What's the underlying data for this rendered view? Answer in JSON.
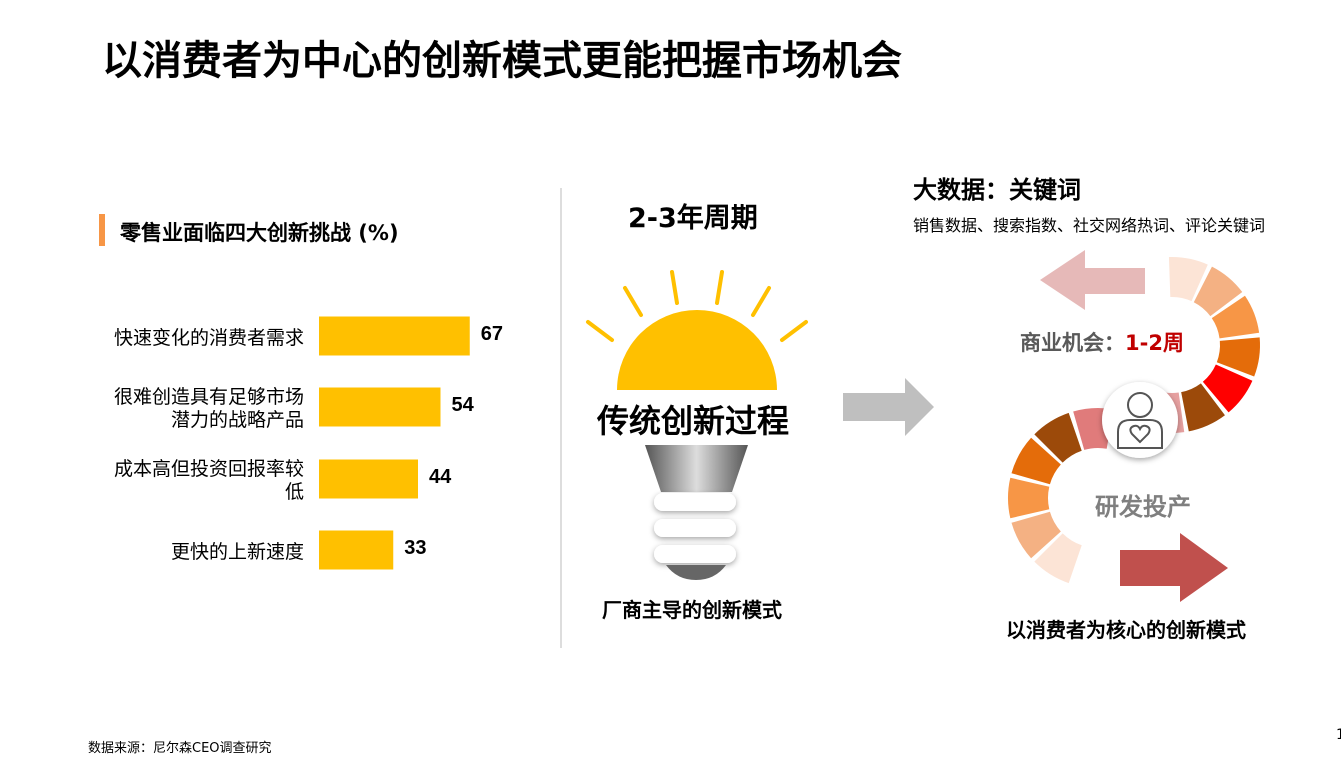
{
  "title": "以消费者为中心的创新模式更能把握市场机会",
  "chart_data": {
    "type": "bar",
    "orientation": "horizontal",
    "title": "零售业面临四大创新挑战 (%)",
    "categories": [
      "快速变化的消费者需求",
      "很难创造具有足够市场潜力的战略产品",
      "成本高但投资回报率较低",
      "更快的上新速度"
    ],
    "values": [
      67,
      54,
      44,
      33
    ],
    "color": "#FFC000"
  },
  "middle": {
    "cycle": "2-3年周期",
    "bulb_label": "传统创新过程",
    "caption": "厂商主导的创新模式"
  },
  "right": {
    "heading": "大数据：关键词",
    "keywords": "销售数据、搜索指数、社交网络热词、评论关键词",
    "opportunity_label": "商业机会：",
    "opportunity_time": "1-2周",
    "production": "研发投产",
    "caption": "以消费者为核心的创新模式"
  },
  "source": "数据来源：尼尔森CEO调查研究",
  "page_number": "1"
}
